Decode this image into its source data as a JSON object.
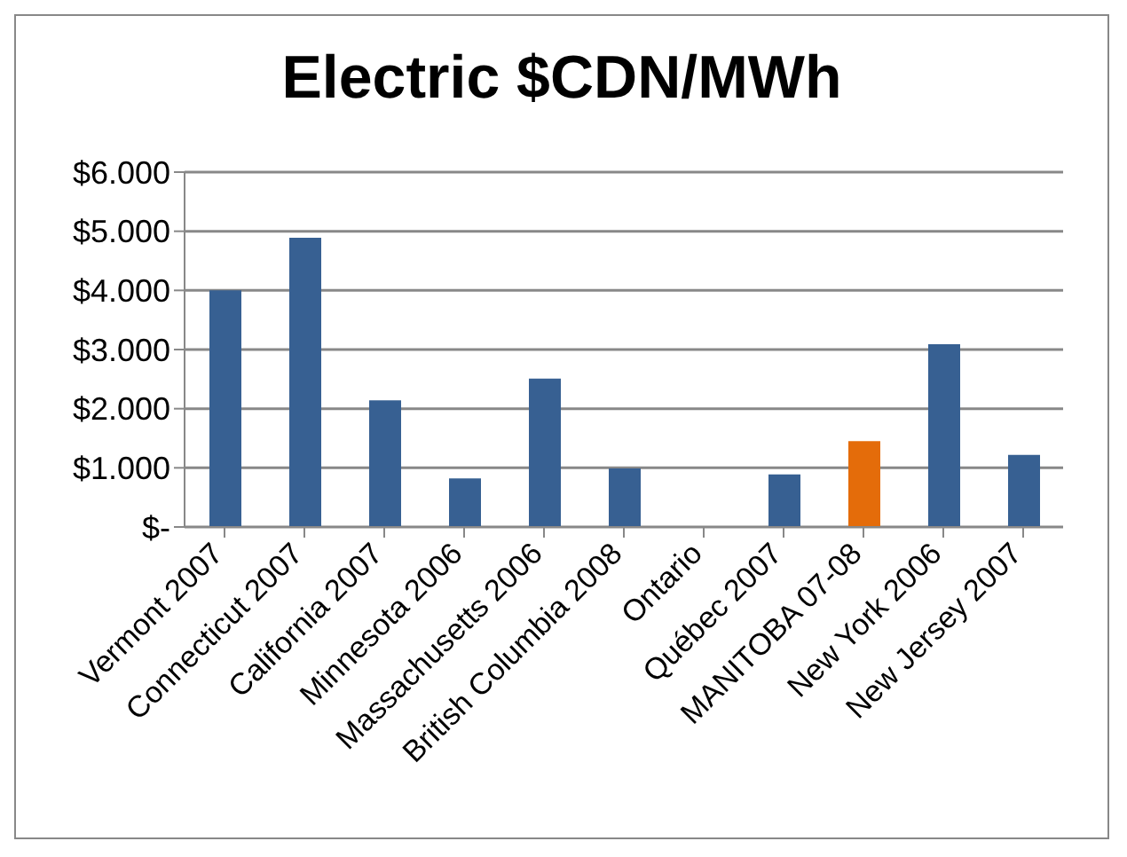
{
  "chart_data": {
    "type": "bar",
    "title": "Electric $CDN/MWh",
    "categories": [
      "Vermont 2007",
      "Connecticut 2007",
      "California 2007",
      "Minnesota 2006",
      "Massachusetts 2006",
      "British Columbia 2008",
      "Ontario",
      "Québec 2007",
      "MANITOBA 07-08",
      "New York 2006",
      "New Jersey 2007"
    ],
    "values": [
      4000,
      4890,
      2140,
      820,
      2510,
      990,
      0,
      890,
      1450,
      3090,
      1220
    ],
    "colors": [
      "#376092",
      "#376092",
      "#376092",
      "#376092",
      "#376092",
      "#376092",
      "#376092",
      "#376092",
      "#e46c0a",
      "#376092",
      "#376092"
    ],
    "ylim": [
      0,
      6000
    ],
    "yticks": [
      {
        "value": 0,
        "label": "$-"
      },
      {
        "value": 1000,
        "label": "$1.000"
      },
      {
        "value": 2000,
        "label": "$2.000"
      },
      {
        "value": 3000,
        "label": "$3.000"
      },
      {
        "value": 4000,
        "label": "$4.000"
      },
      {
        "value": 5000,
        "label": "$5.000"
      },
      {
        "value": 6000,
        "label": "$6.000"
      }
    ],
    "grid": "y"
  }
}
